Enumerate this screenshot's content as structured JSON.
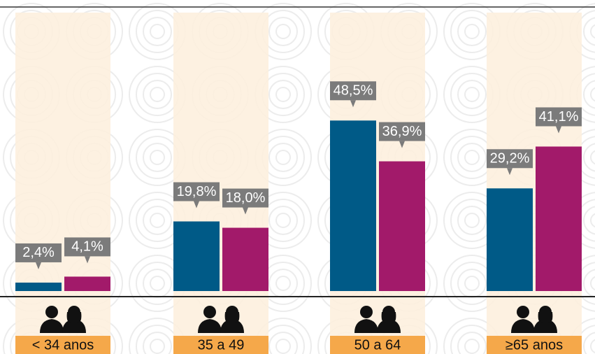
{
  "chart_data": {
    "type": "bar",
    "categories": [
      "< 34 anos",
      "35 a 49",
      "50 a 64",
      "≥65 anos"
    ],
    "series": [
      {
        "color": "#005a87",
        "values": [
          2.4,
          19.8,
          48.5,
          29.2
        ],
        "value_labels": [
          "2,4%",
          "19,8%",
          "48,5%",
          "29,2%"
        ]
      },
      {
        "color": "#a21a6a",
        "values": [
          4.1,
          18.0,
          36.9,
          41.1
        ],
        "value_labels": [
          "4,1%",
          "18,0%",
          "36,9%",
          "41,1%"
        ]
      }
    ],
    "ylim": [
      0,
      80
    ]
  }
}
